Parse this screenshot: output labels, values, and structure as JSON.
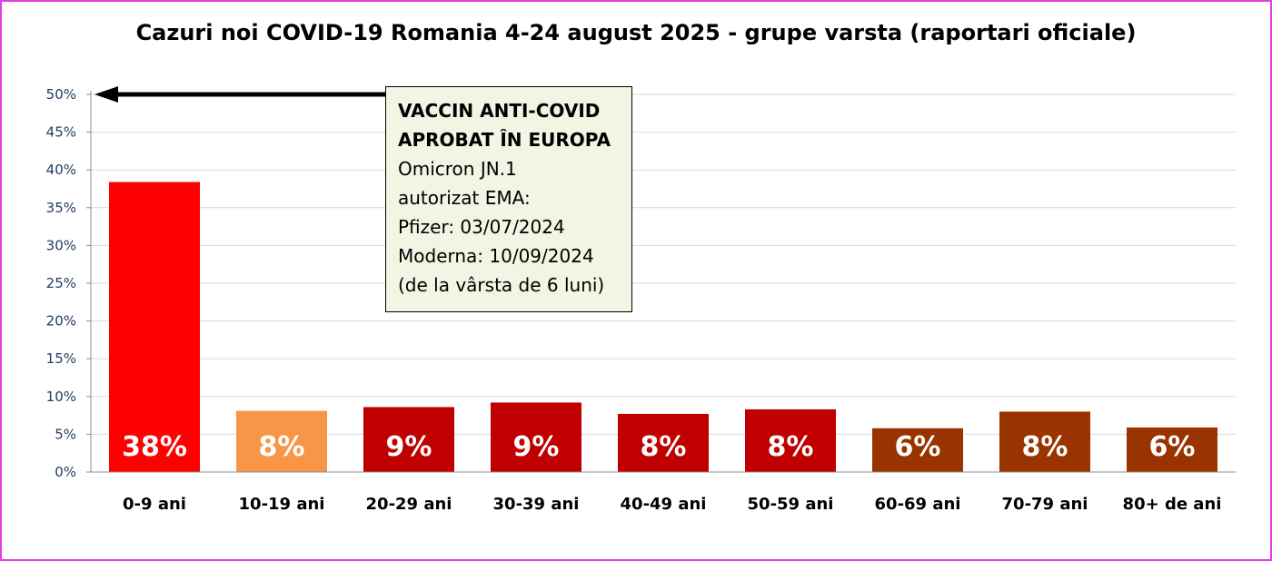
{
  "chart_data": {
    "type": "bar",
    "title": "Cazuri noi COVID-19 Romania 4-24 august 2025  - grupe varsta (raportari oficiale)",
    "xlabel": "",
    "ylabel": "",
    "categories": [
      "0-9 ani",
      "10-19 ani",
      "20-29 ani",
      "30-39 ani",
      "40-49 ani",
      "50-59 ani",
      "60-69 ani",
      "70-79 ani",
      "80+ de ani"
    ],
    "values": [
      38.4,
      8.1,
      8.6,
      9.2,
      7.7,
      8.3,
      5.8,
      8.0,
      5.9
    ],
    "data_labels": [
      "38%",
      "8%",
      "9%",
      "9%",
      "8%",
      "8%",
      "6%",
      "8%",
      "6%"
    ],
    "bar_colors": [
      "#ff0000",
      "#f79646",
      "#c00000",
      "#c00000",
      "#c00000",
      "#c00000",
      "#993300",
      "#993300",
      "#993300"
    ],
    "ylim": [
      0,
      50
    ],
    "yticks": [
      0,
      5,
      10,
      15,
      20,
      25,
      30,
      35,
      40,
      45,
      50
    ],
    "ytick_labels": [
      "0%",
      "5%",
      "10%",
      "15%",
      "20%",
      "25%",
      "30%",
      "35%",
      "40%",
      "45%",
      "50%"
    ],
    "grid": true,
    "legend": "none",
    "arrow_annotation": {
      "points_to_value": 50,
      "lines": [
        {
          "text": "VACCIN ANTI-COVID",
          "bold": true
        },
        {
          "text": "APROBAT ÎN EUROPA",
          "bold": true
        },
        {
          "text": "Omicron JN.1",
          "bold": false
        },
        {
          "text": "autorizat EMA:",
          "bold": false
        },
        {
          "text": "Pfizer: 03/07/2024",
          "bold": false
        },
        {
          "text": "Moderna: 10/09/2024",
          "bold": false
        },
        {
          "text": "(de la vârsta de 6 luni)",
          "bold": false
        }
      ]
    }
  },
  "colors": {
    "frame_border": "#e040e0",
    "gridline": "#d9d9d9",
    "annotation_bg": "#f1f5e4",
    "tick_label": "#1f3a5f"
  }
}
